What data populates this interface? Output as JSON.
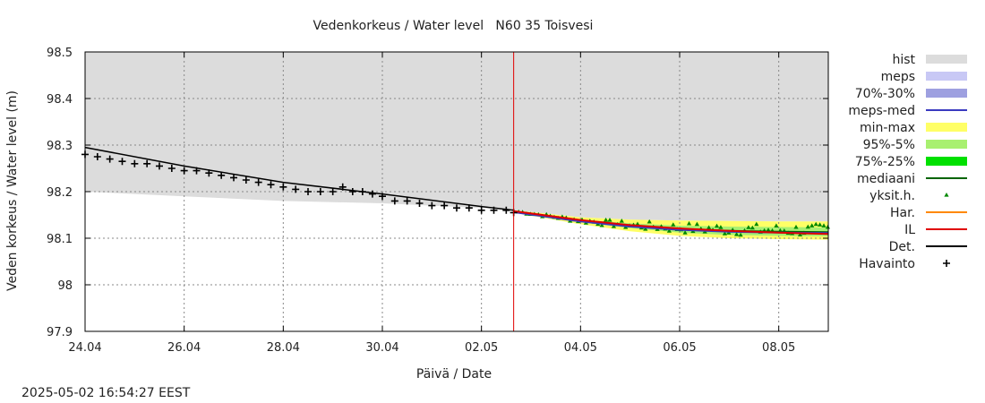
{
  "chart_data": {
    "type": "line",
    "title": "Vedenkorkeus / Water level   N60 35 Toisvesi",
    "xlabel": "Päivä / Date",
    "ylabel": "Veden korkeus / Water level (m)",
    "timestamp": "2025-05-02 16:54:27 EEST",
    "x_range_days": [
      0,
      15
    ],
    "ylim": [
      97.9,
      98.5
    ],
    "y_ticks": [
      97.9,
      98,
      98.1,
      98.2,
      98.3,
      98.4,
      98.5
    ],
    "y_tick_labels": [
      "97.9",
      "98",
      "98.1",
      "98.2",
      "98.3",
      "98.4",
      "98.5"
    ],
    "x_ticks": [
      0,
      2,
      4,
      6,
      8,
      10,
      12,
      14
    ],
    "x_tick_labels": [
      "24.04",
      "26.04",
      "28.04",
      "30.04",
      "02.05",
      "04.05",
      "06.05",
      "08.05"
    ],
    "forecast_start_day": 8.65,
    "grid": true,
    "legend_position": "right",
    "legend": [
      {
        "label": "hist",
        "kind": "box",
        "color": "#dcdcdc"
      },
      {
        "label": "meps",
        "kind": "box",
        "color": "#c8c8f5"
      },
      {
        "label": "70%-30%",
        "kind": "box",
        "color": "#9ea0e0"
      },
      {
        "label": "meps-med",
        "kind": "line",
        "color": "#3a3ac0"
      },
      {
        "label": "min-max",
        "kind": "box",
        "color": "#ffff66"
      },
      {
        "label": "95%-5%",
        "kind": "box",
        "color": "#a8f070"
      },
      {
        "label": "75%-25%",
        "kind": "box",
        "color": "#00e000"
      },
      {
        "label": "mediaani",
        "kind": "line",
        "color": "#006400"
      },
      {
        "label": "yksit.h.",
        "kind": "tri",
        "color": "#008800"
      },
      {
        "label": "Har.",
        "kind": "line",
        "color": "#ff8800"
      },
      {
        "label": "IL",
        "kind": "line",
        "color": "#e00000"
      },
      {
        "label": "Det.",
        "kind": "line",
        "color": "#000000"
      },
      {
        "label": "Havainto",
        "kind": "plus",
        "color": "#000000"
      }
    ],
    "series": [
      {
        "name": "hist_upper",
        "x": [
          0,
          15
        ],
        "y": [
          98.5,
          98.5
        ]
      },
      {
        "name": "hist_lower",
        "x": [
          0,
          2,
          4,
          6,
          8,
          8.65
        ],
        "y": [
          98.2,
          98.19,
          98.18,
          98.175,
          98.165,
          98.16
        ]
      },
      {
        "name": "Det.",
        "x": [
          0,
          2,
          4,
          6,
          8,
          8.65
        ],
        "y": [
          98.295,
          98.255,
          98.22,
          98.195,
          98.168,
          98.16
        ]
      },
      {
        "name": "Havainto",
        "x": [
          0,
          0.25,
          0.5,
          0.75,
          1.0,
          1.25,
          1.5,
          1.75,
          2.0,
          2.25,
          2.5,
          2.75,
          3.0,
          3.25,
          3.5,
          3.75,
          4.0,
          4.25,
          4.5,
          4.75,
          5.0,
          5.2,
          5.4,
          5.6,
          5.8,
          6.0,
          6.25,
          6.5,
          6.75,
          7.0,
          7.25,
          7.5,
          7.75,
          8.0,
          8.25,
          8.5,
          8.65
        ],
        "y": [
          98.28,
          98.275,
          98.27,
          98.265,
          98.26,
          98.26,
          98.255,
          98.25,
          98.245,
          98.245,
          98.24,
          98.235,
          98.23,
          98.225,
          98.22,
          98.215,
          98.21,
          98.205,
          98.2,
          98.2,
          98.2,
          98.21,
          98.2,
          98.2,
          98.195,
          98.19,
          98.18,
          98.18,
          98.175,
          98.17,
          98.17,
          98.165,
          98.165,
          98.16,
          98.16,
          98.16,
          98.155
        ]
      },
      {
        "name": "min-max_upper",
        "x": [
          8.65,
          10,
          11,
          12,
          13,
          14,
          15
        ],
        "y": [
          98.16,
          98.145,
          98.14,
          98.138,
          98.137,
          98.136,
          98.136
        ]
      },
      {
        "name": "min-max_lower",
        "x": [
          8.65,
          10,
          11,
          12,
          13,
          14,
          15
        ],
        "y": [
          98.155,
          98.13,
          98.115,
          98.105,
          98.1,
          98.098,
          98.097
        ]
      },
      {
        "name": "95%-5%_upper",
        "x": [
          8.65,
          10,
          11,
          12,
          13,
          14,
          15
        ],
        "y": [
          98.158,
          98.14,
          98.132,
          98.127,
          98.125,
          98.124,
          98.123
        ]
      },
      {
        "name": "95%-5%_lower",
        "x": [
          8.65,
          10,
          11,
          12,
          13,
          14,
          15
        ],
        "y": [
          98.156,
          98.134,
          98.122,
          98.112,
          98.107,
          98.105,
          98.104
        ]
      },
      {
        "name": "mediaani",
        "x": [
          8.65,
          10,
          11,
          12,
          13,
          14,
          15
        ],
        "y": [
          98.157,
          98.137,
          98.127,
          98.12,
          98.116,
          98.114,
          98.113
        ]
      },
      {
        "name": "meps-med",
        "x": [
          8.65,
          10,
          11,
          12,
          13,
          14,
          15
        ],
        "y": [
          98.156,
          98.136,
          98.125,
          98.118,
          98.114,
          98.112,
          98.111
        ]
      },
      {
        "name": "IL",
        "x": [
          8.65,
          10,
          11,
          12,
          13,
          14,
          15
        ],
        "y": [
          98.158,
          98.139,
          98.128,
          98.121,
          98.116,
          98.112,
          98.109
        ]
      }
    ]
  }
}
